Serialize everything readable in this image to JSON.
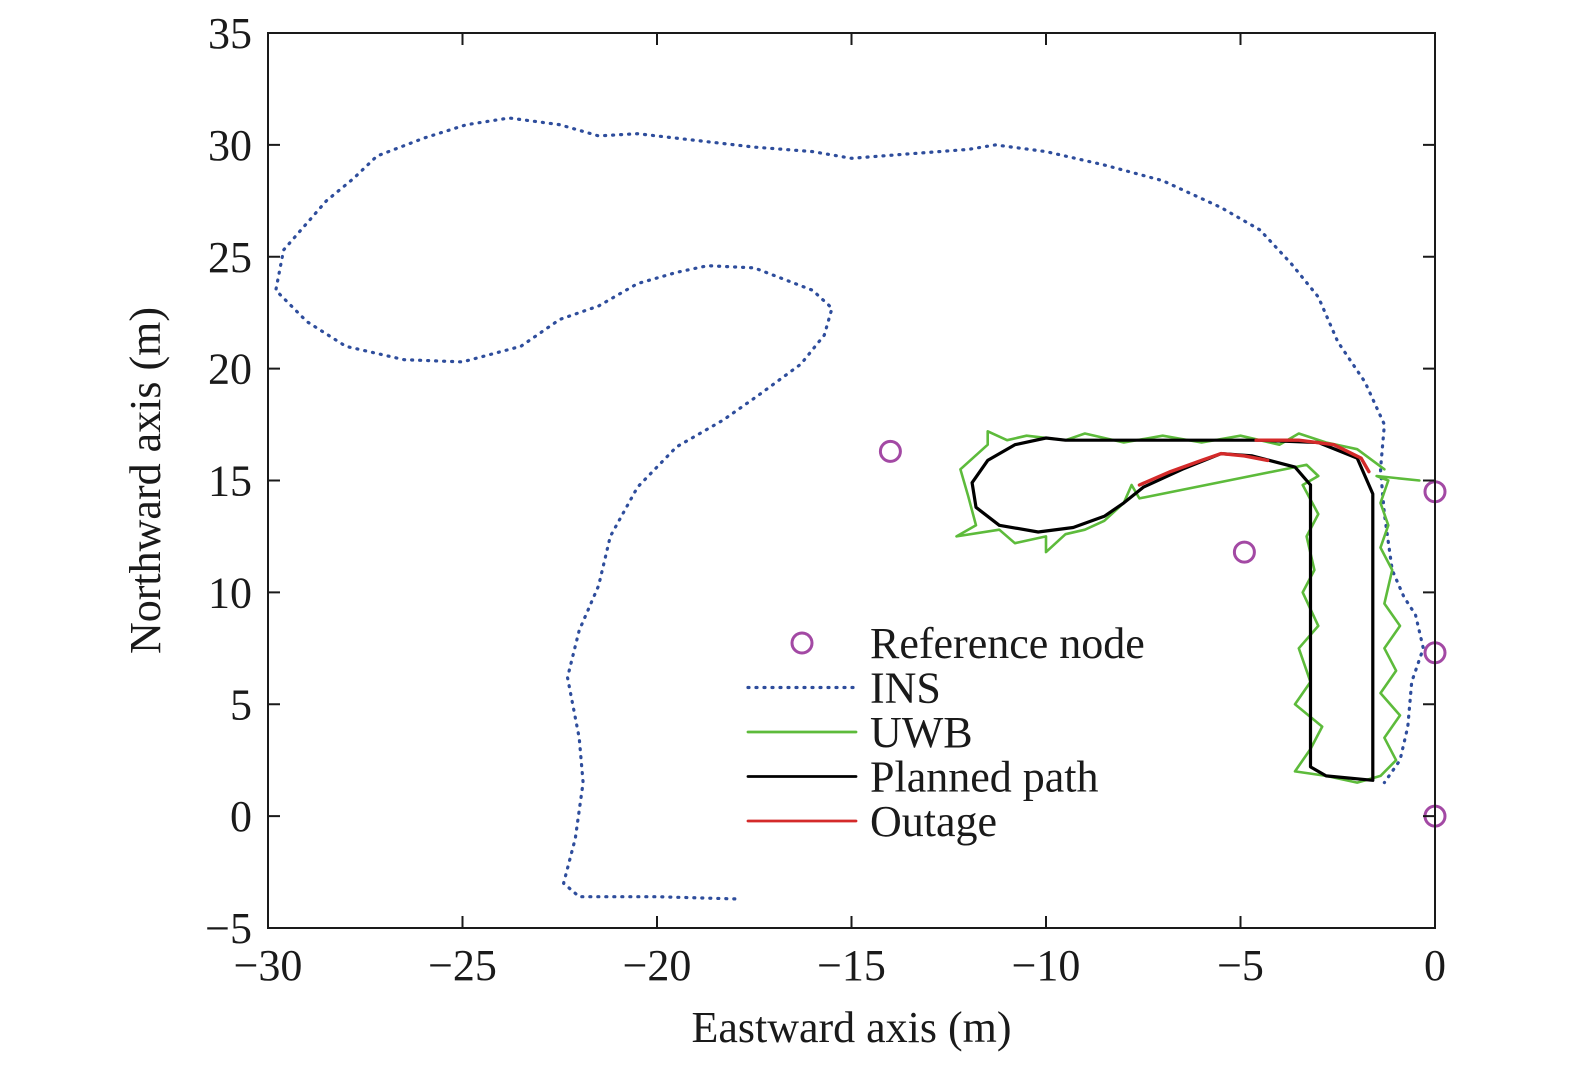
{
  "chart_data": {
    "type": "line",
    "xlabel": "Eastward axis (m)",
    "ylabel": "Northward axis (m)",
    "xlim": [
      -30,
      0
    ],
    "ylim": [
      -5,
      35
    ],
    "x_ticks": [
      -30,
      -25,
      -20,
      -15,
      -10,
      -5,
      0
    ],
    "y_ticks": [
      -5,
      0,
      5,
      10,
      15,
      20,
      25,
      30,
      35
    ],
    "x_tick_labels": [
      "−30",
      "−25",
      "−20",
      "−15",
      "−10",
      "−5",
      "0"
    ],
    "y_tick_labels": [
      "−5",
      "0",
      "5",
      "10",
      "15",
      "20",
      "25",
      "30",
      "35"
    ],
    "grid": false,
    "legend_position": "lower-center",
    "colors": {
      "axis": "#1a1a1a",
      "reference_node": "#a349a4",
      "ins": "#2e4d9c",
      "uwb": "#5dbb3b",
      "planned": "#000000",
      "outage": "#d42a2a"
    },
    "series": [
      {
        "name": "Reference node",
        "style": "circle-marker",
        "points": [
          [
            -14.0,
            16.3
          ],
          [
            -4.9,
            11.8
          ],
          [
            0,
            14.5
          ],
          [
            0,
            7.3
          ],
          [
            0,
            0
          ]
        ]
      },
      {
        "name": "INS",
        "style": "dotted",
        "points": [
          [
            -18,
            -3.7
          ],
          [
            -20,
            -3.6
          ],
          [
            -22,
            -3.6
          ],
          [
            -22.4,
            -3
          ],
          [
            -22.1,
            -1
          ],
          [
            -21.9,
            1.5
          ],
          [
            -22.0,
            3.5
          ],
          [
            -22.3,
            6.2
          ],
          [
            -22.0,
            8.3
          ],
          [
            -21.5,
            10.3
          ],
          [
            -21.2,
            12.5
          ],
          [
            -20.5,
            14.7
          ],
          [
            -19.5,
            16.5
          ],
          [
            -18.3,
            17.7
          ],
          [
            -17.4,
            18.8
          ],
          [
            -16.3,
            20.2
          ],
          [
            -15.7,
            21.5
          ],
          [
            -15.5,
            22.7
          ],
          [
            -16.0,
            23.5
          ],
          [
            -17.5,
            24.5
          ],
          [
            -18.7,
            24.6
          ],
          [
            -19.5,
            24.3
          ],
          [
            -20.5,
            23.8
          ],
          [
            -21.5,
            22.8
          ],
          [
            -22.5,
            22.2
          ],
          [
            -23.5,
            21.0
          ],
          [
            -25,
            20.3
          ],
          [
            -26.5,
            20.4
          ],
          [
            -28.0,
            21.0
          ],
          [
            -29.0,
            22.1
          ],
          [
            -29.8,
            23.5
          ],
          [
            -29.6,
            25.3
          ],
          [
            -29.0,
            26.5
          ],
          [
            -28.5,
            27.5
          ],
          [
            -27.8,
            28.5
          ],
          [
            -27.2,
            29.5
          ],
          [
            -26.0,
            30.3
          ],
          [
            -24.9,
            30.9
          ],
          [
            -23.8,
            31.2
          ],
          [
            -22.5,
            30.9
          ],
          [
            -21.5,
            30.4
          ],
          [
            -20.5,
            30.5
          ],
          [
            -19.0,
            30.2
          ],
          [
            -17.5,
            29.9
          ],
          [
            -16.0,
            29.7
          ],
          [
            -15.0,
            29.4
          ],
          [
            -13.5,
            29.6
          ],
          [
            -12.0,
            29.8
          ],
          [
            -11.3,
            30.0
          ],
          [
            -10.0,
            29.7
          ],
          [
            -8.5,
            29.1
          ],
          [
            -7.0,
            28.4
          ],
          [
            -5.5,
            27.2
          ],
          [
            -4.5,
            26.2
          ],
          [
            -3.7,
            24.7
          ],
          [
            -3.0,
            23.2
          ],
          [
            -2.5,
            21.2
          ],
          [
            -1.8,
            19.4
          ],
          [
            -1.3,
            17.5
          ],
          [
            -1.4,
            15.5
          ],
          [
            -1.3,
            13.5
          ],
          [
            -1.1,
            11.0
          ],
          [
            -0.8,
            9.8
          ],
          [
            -0.5,
            9.0
          ],
          [
            -0.3,
            7.5
          ],
          [
            -0.6,
            6.0
          ],
          [
            -0.7,
            4.0
          ],
          [
            -0.9,
            2.5
          ],
          [
            -1.3,
            1.5
          ]
        ]
      },
      {
        "name": "UWB",
        "style": "solid",
        "points": [
          [
            -1.3,
            15.5
          ],
          [
            -2.0,
            16.4
          ],
          [
            -2.8,
            16.7
          ],
          [
            -3.5,
            17.1
          ],
          [
            -4.0,
            16.6
          ],
          [
            -5.0,
            17.0
          ],
          [
            -6.0,
            16.7
          ],
          [
            -7.0,
            17.0
          ],
          [
            -8.0,
            16.7
          ],
          [
            -9.0,
            17.1
          ],
          [
            -9.5,
            16.8
          ],
          [
            -10.5,
            17.0
          ],
          [
            -11.0,
            16.8
          ],
          [
            -11.5,
            17.2
          ],
          [
            -11.5,
            16.6
          ],
          [
            -12.2,
            15.5
          ],
          [
            -12.0,
            14.3
          ],
          [
            -11.8,
            13.0
          ],
          [
            -12.3,
            12.5
          ],
          [
            -11.2,
            12.8
          ],
          [
            -10.8,
            12.2
          ],
          [
            -10.0,
            12.5
          ],
          [
            -10.0,
            11.8
          ],
          [
            -9.5,
            12.6
          ],
          [
            -9.0,
            12.8
          ],
          [
            -8.5,
            13.2
          ],
          [
            -8.0,
            14.0
          ],
          [
            -7.8,
            14.8
          ],
          [
            -7.6,
            14.2
          ],
          [
            -3.3,
            15.7
          ],
          [
            -3.0,
            15.2
          ],
          [
            -3.4,
            14.8
          ],
          [
            -3.0,
            13.5
          ],
          [
            -3.3,
            12.5
          ],
          [
            -3.1,
            11.0
          ],
          [
            -3.4,
            10.0
          ],
          [
            -3.0,
            8.5
          ],
          [
            -3.5,
            7.5
          ],
          [
            -3.2,
            6.0
          ],
          [
            -3.6,
            5.0
          ],
          [
            -2.9,
            4.0
          ],
          [
            -3.2,
            3.0
          ],
          [
            -3.6,
            2.0
          ],
          [
            -2.8,
            1.8
          ],
          [
            -2.0,
            1.5
          ],
          [
            -1.4,
            1.8
          ],
          [
            -1.0,
            2.5
          ],
          [
            -1.3,
            3.5
          ],
          [
            -0.9,
            4.5
          ],
          [
            -1.4,
            5.5
          ],
          [
            -1.0,
            6.5
          ],
          [
            -1.3,
            7.5
          ],
          [
            -0.9,
            8.5
          ],
          [
            -1.3,
            9.5
          ],
          [
            -1.1,
            11.0
          ],
          [
            -1.4,
            12.0
          ],
          [
            -1.2,
            13.0
          ],
          [
            -1.4,
            14.0
          ],
          [
            -1.2,
            15.0
          ],
          [
            -1.5,
            15.2
          ],
          [
            -0.4,
            15.0
          ]
        ]
      },
      {
        "name": "Planned path",
        "style": "solid",
        "points": [
          [
            -3.2,
            14.8
          ],
          [
            -3.2,
            2.2
          ],
          [
            -2.8,
            1.8
          ],
          [
            -1.6,
            1.6
          ],
          [
            -1.6,
            14.4
          ],
          [
            -2.0,
            16.0
          ],
          [
            -3.0,
            16.7
          ],
          [
            -4.5,
            16.8
          ],
          [
            -6.0,
            16.8
          ],
          [
            -7.5,
            16.8
          ],
          [
            -9.0,
            16.8
          ],
          [
            -9.5,
            16.8
          ],
          [
            -10.0,
            16.9
          ],
          [
            -10.8,
            16.6
          ],
          [
            -11.5,
            15.9
          ],
          [
            -11.9,
            14.9
          ],
          [
            -11.8,
            13.8
          ],
          [
            -11.2,
            13.0
          ],
          [
            -10.2,
            12.7
          ],
          [
            -9.3,
            12.9
          ],
          [
            -8.5,
            13.4
          ],
          [
            -8.0,
            14.0
          ],
          [
            -7.5,
            14.7
          ],
          [
            -6.5,
            15.5
          ],
          [
            -5.5,
            16.2
          ],
          [
            -4.7,
            16.1
          ],
          [
            -3.6,
            15.6
          ],
          [
            -3.2,
            14.8
          ]
        ]
      },
      {
        "name": "Outage",
        "style": "solid",
        "segments": [
          [
            [
              -7.6,
              14.8
            ],
            [
              -6.8,
              15.4
            ],
            [
              -6.0,
              15.9
            ],
            [
              -5.5,
              16.2
            ],
            [
              -4.9,
              16.1
            ],
            [
              -4.3,
              15.9
            ]
          ],
          [
            [
              -4.6,
              16.8
            ],
            [
              -3.5,
              16.8
            ],
            [
              -2.6,
              16.6
            ],
            [
              -1.9,
              16.0
            ],
            [
              -1.7,
              15.4
            ]
          ]
        ]
      }
    ]
  }
}
